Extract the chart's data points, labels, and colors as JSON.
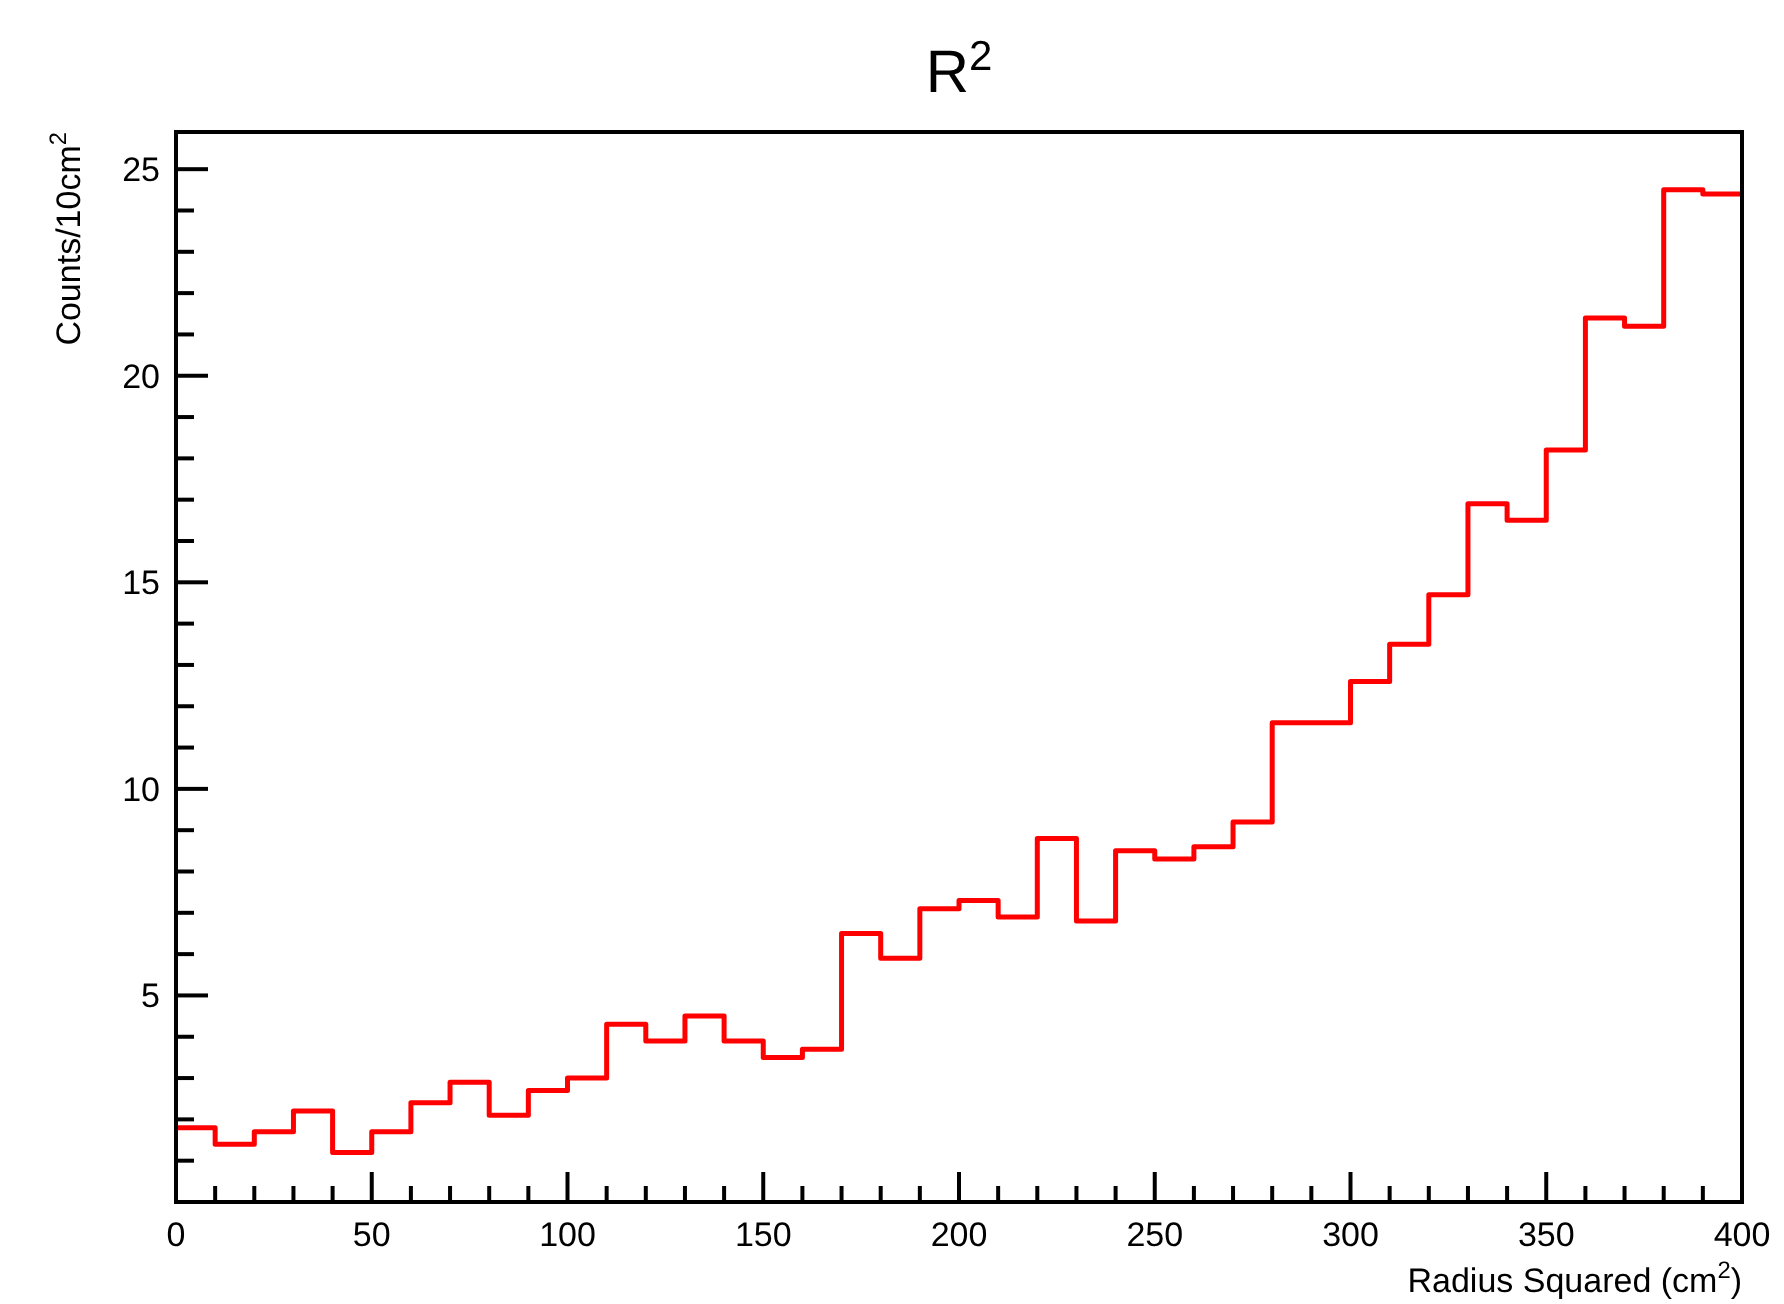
{
  "chart_data": {
    "type": "histogram",
    "title": "R$^{2}$",
    "xlabel": "Radius Squared (cm$^{2}$)",
    "ylabel": "Counts/10cm$^{2}$",
    "color": "#ff0000",
    "bins": [
      0,
      10,
      20,
      30,
      40,
      50,
      60,
      70,
      80,
      90,
      100,
      110,
      120,
      130,
      140,
      150,
      160,
      170,
      180,
      190,
      200,
      210,
      220,
      230,
      240,
      250,
      260,
      270,
      280,
      290,
      300,
      310,
      320,
      330,
      340,
      350,
      360,
      370,
      380,
      390,
      400
    ],
    "values": [
      1.8,
      1.4,
      1.7,
      2.2,
      1.2,
      1.7,
      2.4,
      2.9,
      2.1,
      2.7,
      3.0,
      4.3,
      3.9,
      4.5,
      3.9,
      3.5,
      3.7,
      6.5,
      5.9,
      7.1,
      7.3,
      6.9,
      8.8,
      6.8,
      8.5,
      8.3,
      8.6,
      9.2,
      11.6,
      11.6,
      12.6,
      13.5,
      14.7,
      16.9,
      16.5,
      18.2,
      21.4,
      21.2,
      24.5,
      24.4
    ],
    "xlim": [
      0,
      400
    ],
    "xticks": [
      0,
      {
        "value": 10,
        "label": null
      },
      {
        "value": 20,
        "label": null
      },
      {
        "value": 30,
        "label": null
      },
      {
        "value": 40,
        "label": null
      },
      50,
      {
        "value": 60,
        "label": null
      },
      {
        "value": 70,
        "label": null
      },
      {
        "value": 80,
        "label": null
      },
      {
        "value": 90,
        "label": null
      },
      100,
      {
        "value": 110,
        "label": null
      },
      {
        "value": 120,
        "label": null
      },
      {
        "value": 130,
        "label": null
      },
      {
        "value": 140,
        "label": null
      },
      150,
      {
        "value": 160,
        "label": null
      },
      {
        "value": 170,
        "label": null
      },
      {
        "value": 180,
        "label": null
      },
      {
        "value": 190,
        "label": null
      },
      200,
      {
        "value": 210,
        "label": null
      },
      {
        "value": 220,
        "label": null
      },
      {
        "value": 230,
        "label": null
      },
      {
        "value": 240,
        "label": null
      },
      250,
      {
        "value": 260,
        "label": null
      },
      {
        "value": 270,
        "label": null
      },
      {
        "value": 280,
        "label": null
      },
      {
        "value": 290,
        "label": null
      },
      300,
      {
        "value": 310,
        "label": null
      },
      {
        "value": 320,
        "label": null
      },
      {
        "value": 330,
        "label": null
      },
      {
        "value": 340,
        "label": null
      },
      350,
      {
        "value": 360,
        "label": null
      },
      {
        "value": 370,
        "label": null
      },
      {
        "value": 380,
        "label": null
      },
      {
        "value": 390,
        "label": null
      },
      400
    ],
    "ylim": [
      0,
      25.9
    ],
    "yticks": [
      {
        "value": 1,
        "label": null
      },
      {
        "value": 2,
        "label": null
      },
      {
        "value": 3,
        "label": null
      },
      {
        "value": 4,
        "label": null
      },
      5,
      {
        "value": 6,
        "label": null
      },
      {
        "value": 7,
        "label": null
      },
      {
        "value": 8,
        "label": null
      },
      {
        "value": 9,
        "label": null
      },
      10,
      {
        "value": 11,
        "label": null
      },
      {
        "value": 12,
        "label": null
      },
      {
        "value": 13,
        "label": null
      },
      {
        "value": 14,
        "label": null
      },
      15,
      {
        "value": 16,
        "label": null
      },
      {
        "value": 17,
        "label": null
      },
      {
        "value": 18,
        "label": null
      },
      {
        "value": 19,
        "label": null
      },
      20,
      {
        "value": 21,
        "label": null
      },
      {
        "value": 22,
        "label": null
      },
      {
        "value": 23,
        "label": null
      },
      {
        "value": 24,
        "label": null
      },
      25
    ],
    "grid": false
  }
}
